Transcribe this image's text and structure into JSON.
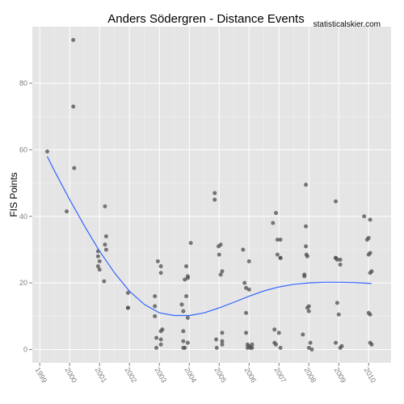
{
  "chart_data": {
    "type": "scatter",
    "title": "Anders Södergren - Distance Events",
    "watermark": "statisticalskier.com",
    "xlabel": "",
    "ylabel": "FIS Points",
    "xlim": [
      1998.75,
      2010.75
    ],
    "ylim": [
      -4,
      97
    ],
    "yticks": [
      0,
      20,
      40,
      60,
      80
    ],
    "xticks": [
      "1999",
      "2000",
      "2001",
      "2002",
      "2003",
      "2004",
      "2005",
      "2006",
      "2007",
      "2008",
      "2009",
      "2010"
    ],
    "grid": true,
    "background_color": "#e5e5e5",
    "point_color": "#4d4d4d",
    "line_color": "#3366ff",
    "points": [
      [
        1999.25,
        59.5
      ],
      [
        1999.9,
        41.5
      ],
      [
        2000.12,
        93
      ],
      [
        2000.12,
        73
      ],
      [
        2000.15,
        54.5
      ],
      [
        2000.95,
        29.5
      ],
      [
        2000.95,
        28
      ],
      [
        2001.0,
        26.5
      ],
      [
        2000.95,
        25
      ],
      [
        2001.0,
        24
      ],
      [
        2001.18,
        43
      ],
      [
        2001.18,
        31.5
      ],
      [
        2001.22,
        34
      ],
      [
        2001.22,
        30
      ],
      [
        2001.15,
        20.5
      ],
      [
        2001.95,
        17
      ],
      [
        2001.95,
        12.5
      ],
      [
        2001.95,
        12.5
      ],
      [
        2002.85,
        16
      ],
      [
        2002.85,
        13
      ],
      [
        2002.85,
        10
      ],
      [
        2002.9,
        3.5
      ],
      [
        2002.9,
        0.5
      ],
      [
        2002.95,
        26.5
      ],
      [
        2003.05,
        25
      ],
      [
        2003.05,
        23
      ],
      [
        2003.05,
        5.5
      ],
      [
        2003.1,
        6
      ],
      [
        2003.05,
        3
      ],
      [
        2003.05,
        1.5
      ],
      [
        2003.75,
        13.5
      ],
      [
        2003.8,
        11.5
      ],
      [
        2003.8,
        5.5
      ],
      [
        2003.8,
        2.5
      ],
      [
        2003.8,
        0.5
      ],
      [
        2003.85,
        0.5
      ],
      [
        2003.85,
        21
      ],
      [
        2003.9,
        25
      ],
      [
        2003.9,
        16
      ],
      [
        2003.95,
        22
      ],
      [
        2003.95,
        21.5
      ],
      [
        2003.95,
        9.5
      ],
      [
        2003.95,
        2
      ],
      [
        2004.05,
        32
      ],
      [
        2004.85,
        47
      ],
      [
        2004.85,
        45
      ],
      [
        2004.9,
        3
      ],
      [
        2004.92,
        0.5
      ],
      [
        2004.98,
        31
      ],
      [
        2005.0,
        28.5
      ],
      [
        2005.05,
        31.5
      ],
      [
        2005.05,
        22.5
      ],
      [
        2005.1,
        23.5
      ],
      [
        2005.1,
        2.5
      ],
      [
        2005.1,
        1.5
      ],
      [
        2005.1,
        5
      ],
      [
        2005.8,
        30
      ],
      [
        2005.85,
        20
      ],
      [
        2005.9,
        18.5
      ],
      [
        2005.9,
        11
      ],
      [
        2005.9,
        5
      ],
      [
        2005.95,
        1.5
      ],
      [
        2005.95,
        0.5
      ],
      [
        2006.0,
        26.5
      ],
      [
        2006.0,
        18
      ],
      [
        2006.0,
        1
      ],
      [
        2006.05,
        0.5
      ],
      [
        2006.1,
        1.5
      ],
      [
        2006.1,
        0.5
      ],
      [
        2006.8,
        38
      ],
      [
        2006.85,
        6
      ],
      [
        2006.85,
        2
      ],
      [
        2006.9,
        1.5
      ],
      [
        2006.9,
        41
      ],
      [
        2006.95,
        33
      ],
      [
        2006.95,
        28.5
      ],
      [
        2007.05,
        33
      ],
      [
        2007.05,
        27.5
      ],
      [
        2007.05,
        27.5
      ],
      [
        2007.0,
        5
      ],
      [
        2007.05,
        0.5
      ],
      [
        2007.8,
        4.5
      ],
      [
        2007.85,
        22
      ],
      [
        2007.85,
        22.5
      ],
      [
        2007.9,
        49.5
      ],
      [
        2007.9,
        37
      ],
      [
        2007.9,
        31
      ],
      [
        2007.92,
        28.5
      ],
      [
        2007.95,
        28
      ],
      [
        2007.95,
        12.5
      ],
      [
        2008.0,
        11.5
      ],
      [
        2008.0,
        13
      ],
      [
        2008.0,
        0.5
      ],
      [
        2008.05,
        2
      ],
      [
        2008.1,
        0
      ],
      [
        2008.9,
        44.5
      ],
      [
        2008.9,
        27.5
      ],
      [
        2008.9,
        27.5
      ],
      [
        2008.95,
        27
      ],
      [
        2008.9,
        2
      ],
      [
        2008.95,
        14
      ],
      [
        2009.0,
        10.5
      ],
      [
        2009.05,
        25.5
      ],
      [
        2009.05,
        0.5
      ],
      [
        2009.1,
        1
      ],
      [
        2009.05,
        27
      ],
      [
        2009.85,
        40
      ],
      [
        2009.95,
        33
      ],
      [
        2010.0,
        33.5
      ],
      [
        2010.05,
        39
      ],
      [
        2010.05,
        29
      ],
      [
        2010.0,
        28.5
      ],
      [
        2010.05,
        23
      ],
      [
        2010.1,
        23.5
      ],
      [
        2010.0,
        11
      ],
      [
        2010.05,
        10.5
      ],
      [
        2010.05,
        2
      ],
      [
        2010.1,
        1.5
      ]
    ],
    "smooth": [
      [
        1999.25,
        58
      ],
      [
        1999.5,
        53.5
      ],
      [
        2000.0,
        45
      ],
      [
        2000.5,
        37
      ],
      [
        2001.0,
        29.5
      ],
      [
        2001.5,
        23
      ],
      [
        2002.0,
        17.5
      ],
      [
        2002.5,
        13.5
      ],
      [
        2003.0,
        11
      ],
      [
        2003.5,
        10.2
      ],
      [
        2004.0,
        10.2
      ],
      [
        2004.5,
        11
      ],
      [
        2005.0,
        12.5
      ],
      [
        2005.5,
        14.2
      ],
      [
        2006.0,
        16
      ],
      [
        2006.5,
        17.6
      ],
      [
        2007.0,
        18.8
      ],
      [
        2007.5,
        19.6
      ],
      [
        2008.0,
        20
      ],
      [
        2008.5,
        20.2
      ],
      [
        2009.0,
        20.2
      ],
      [
        2009.5,
        20.1
      ],
      [
        2010.0,
        19.9
      ],
      [
        2010.1,
        19.8
      ]
    ]
  }
}
